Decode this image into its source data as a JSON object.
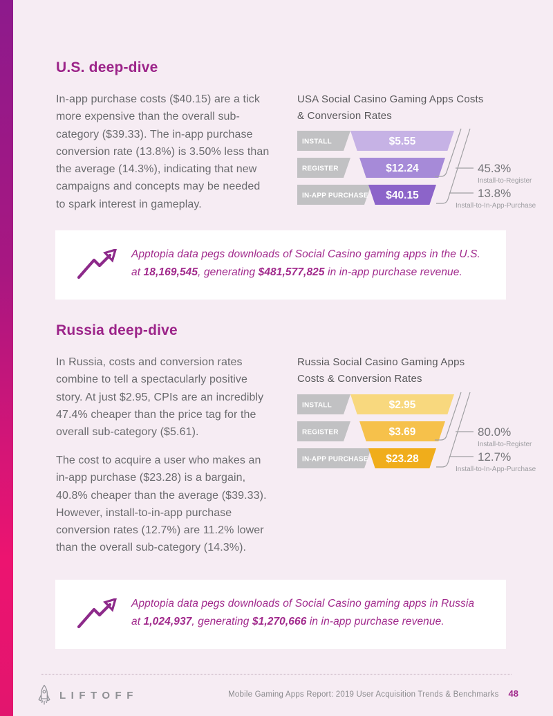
{
  "colors": {
    "page_bg": "#f6ecf3",
    "accent_bar_top": "#8d1a8c",
    "accent_bar_bottom": "#e2156e",
    "heading_magenta": "#9c2489",
    "body_text_gray": "#6a6b6e",
    "callout_bg": "#ffffff",
    "callout_text": "#a12a8c",
    "stage_label_block": "#c1c1c3"
  },
  "us": {
    "heading": "U.S. deep-dive",
    "paragraph": "In-app purchase costs ($40.15) are a tick more expensive than the overall sub-category ($39.33). The in-app purchase conversion rate (13.8%) is 3.50% less than the average (14.3%), indicating that new campaigns and concepts may be needed to spark interest in gameplay.",
    "chart_title_line1": "USA Social Casino Gaming Apps Costs",
    "chart_title_line2": "& Conversion Rates",
    "callout": {
      "line1": "Apptopia data pegs downloads of Social Casino gaming apps in the U.S.",
      "line2_at": "at ",
      "downloads": "18,169,545",
      "line2_generating": ", generating ",
      "revenue": "$481,577,825",
      "line2_end": " in in-app purchase revenue."
    }
  },
  "russia": {
    "heading": "Russia deep-dive",
    "paragraph1": "In Russia, costs and conversion rates combine to tell a spectacularly positive story. At just $2.95, CPIs are an incredibly 47.4% cheaper than the price tag for the overall sub-category ($5.61).",
    "paragraph2": "The cost to acquire a user who makes an in-app purchase ($23.28) is a bargain, 40.8% cheaper than the average ($39.33). However, install-to-in-app purchase conversion rates (12.7%) are 11.2% lower than the overall sub-category (14.3%).",
    "chart_title_line1": "Russia Social Casino Gaming Apps",
    "chart_title_line2": "Costs & Conversion Rates",
    "callout": {
      "line1": "Apptopia data pegs downloads of Social Casino gaming apps in Russia",
      "line2_at": "at ",
      "downloads": "1,024,937",
      "line2_generating": ", generating ",
      "revenue": "$1,270,666",
      "line2_end": " in in-app purchase revenue."
    }
  },
  "footer": {
    "brand": "LIFTOFF",
    "report_title": "Mobile Gaming Apps Report: 2019 User Acquisition Trends & Benchmarks",
    "page_number": "48"
  },
  "chart_data": [
    {
      "type": "funnel",
      "title": "USA Social Casino Gaming Apps Costs & Conversion Rates",
      "stages": [
        "INSTALL",
        "REGISTER",
        "IN-APP PURCHASE"
      ],
      "costs": [
        "$5.55",
        "$12.24",
        "$40.15"
      ],
      "conversions": [
        {
          "label": "Install-to-Register",
          "value": "45.3%"
        },
        {
          "label": "Install-to-In-App-Purchase",
          "value": "13.8%"
        }
      ],
      "colors": [
        "#c6b2e5",
        "#a68ad8",
        "#8c64c9"
      ],
      "label_block_color": "#c1c1c3"
    },
    {
      "type": "funnel",
      "title": "Russia Social Casino Gaming Apps Costs & Conversion Rates",
      "stages": [
        "INSTALL",
        "REGISTER",
        "IN-APP PURCHASE"
      ],
      "costs": [
        "$2.95",
        "$3.69",
        "$23.28"
      ],
      "conversions": [
        {
          "label": "Install-to-Register",
          "value": "80.0%"
        },
        {
          "label": "Install-to-In-App-Purchase",
          "value": "12.7%"
        }
      ],
      "colors": [
        "#f8d87e",
        "#f6c14b",
        "#f0ad1b"
      ],
      "label_block_color": "#c1c1c3"
    }
  ]
}
